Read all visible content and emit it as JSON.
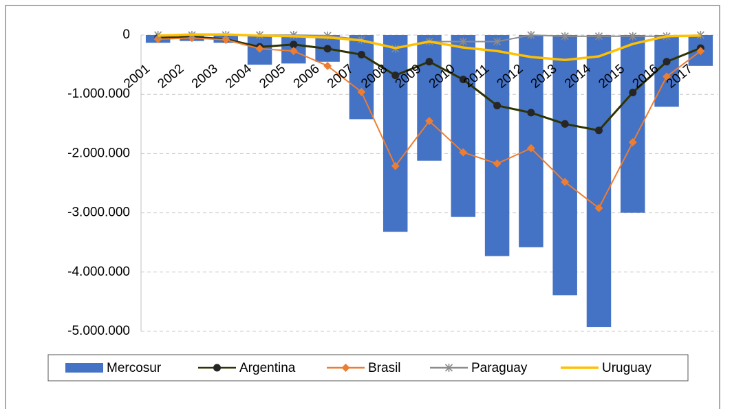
{
  "chart_data": {
    "type": "bar-line",
    "categories": [
      "2001",
      "2002",
      "2003",
      "2004",
      "2005",
      "2006",
      "2007",
      "2008",
      "2009",
      "2010",
      "2011",
      "2012",
      "2013",
      "2014",
      "2015",
      "2016",
      "2017"
    ],
    "series": [
      {
        "name": "Mercosur",
        "type": "bar",
        "color": "#4472c4",
        "values": [
          -130000,
          -100000,
          -130000,
          -500000,
          -480000,
          -450000,
          -1420000,
          -3320000,
          -2120000,
          -3070000,
          -3730000,
          -3580000,
          -4390000,
          -4930000,
          -3000000,
          -1210000,
          -520000
        ]
      },
      {
        "name": "Argentina",
        "type": "line",
        "color": "#2f3300",
        "marker": "circle",
        "marker_color": "#262626",
        "values": [
          -50000,
          -30000,
          -70000,
          -200000,
          -160000,
          -230000,
          -330000,
          -680000,
          -450000,
          -750000,
          -1190000,
          -1310000,
          -1500000,
          -1610000,
          -970000,
          -450000,
          -220000
        ]
      },
      {
        "name": "Brasil",
        "type": "line",
        "color": "#ed7d31",
        "marker": "diamond",
        "marker_color": "#ed7d31",
        "values": [
          -70000,
          -50000,
          -80000,
          -230000,
          -270000,
          -520000,
          -960000,
          -2210000,
          -1450000,
          -1980000,
          -2170000,
          -1910000,
          -2480000,
          -2920000,
          -1810000,
          -700000,
          -270000
        ]
      },
      {
        "name": "Paraguay",
        "type": "line",
        "color": "#8c8c8c",
        "marker": "star",
        "marker_color": "#8c8c8c",
        "values": [
          0,
          0,
          0,
          0,
          0,
          -10000,
          -80000,
          -230000,
          -110000,
          -110000,
          -110000,
          0,
          -20000,
          -20000,
          -20000,
          -20000,
          0
        ]
      },
      {
        "name": "Uruguay",
        "type": "line",
        "color": "#ffc000",
        "marker": null,
        "values": [
          -10000,
          10000,
          10000,
          -10000,
          -20000,
          -40000,
          -90000,
          -220000,
          -110000,
          -210000,
          -270000,
          -370000,
          -420000,
          -360000,
          -150000,
          -20000,
          -10000
        ]
      }
    ],
    "ylim": [
      -5000000,
      0
    ],
    "yticks": [
      0,
      {
        "value": -1000000,
        "label": "-1.000.000"
      },
      {
        "value": -2000000,
        "label": "-2.000.000"
      },
      {
        "value": -3000000,
        "label": "-3.000.000"
      },
      {
        "value": -4000000,
        "label": "-4.000.000"
      },
      {
        "value": -5000000,
        "label": "-5.000.000"
      }
    ],
    "negative_tick_color": "#ff0000",
    "grid": true,
    "legend": "bottom"
  }
}
